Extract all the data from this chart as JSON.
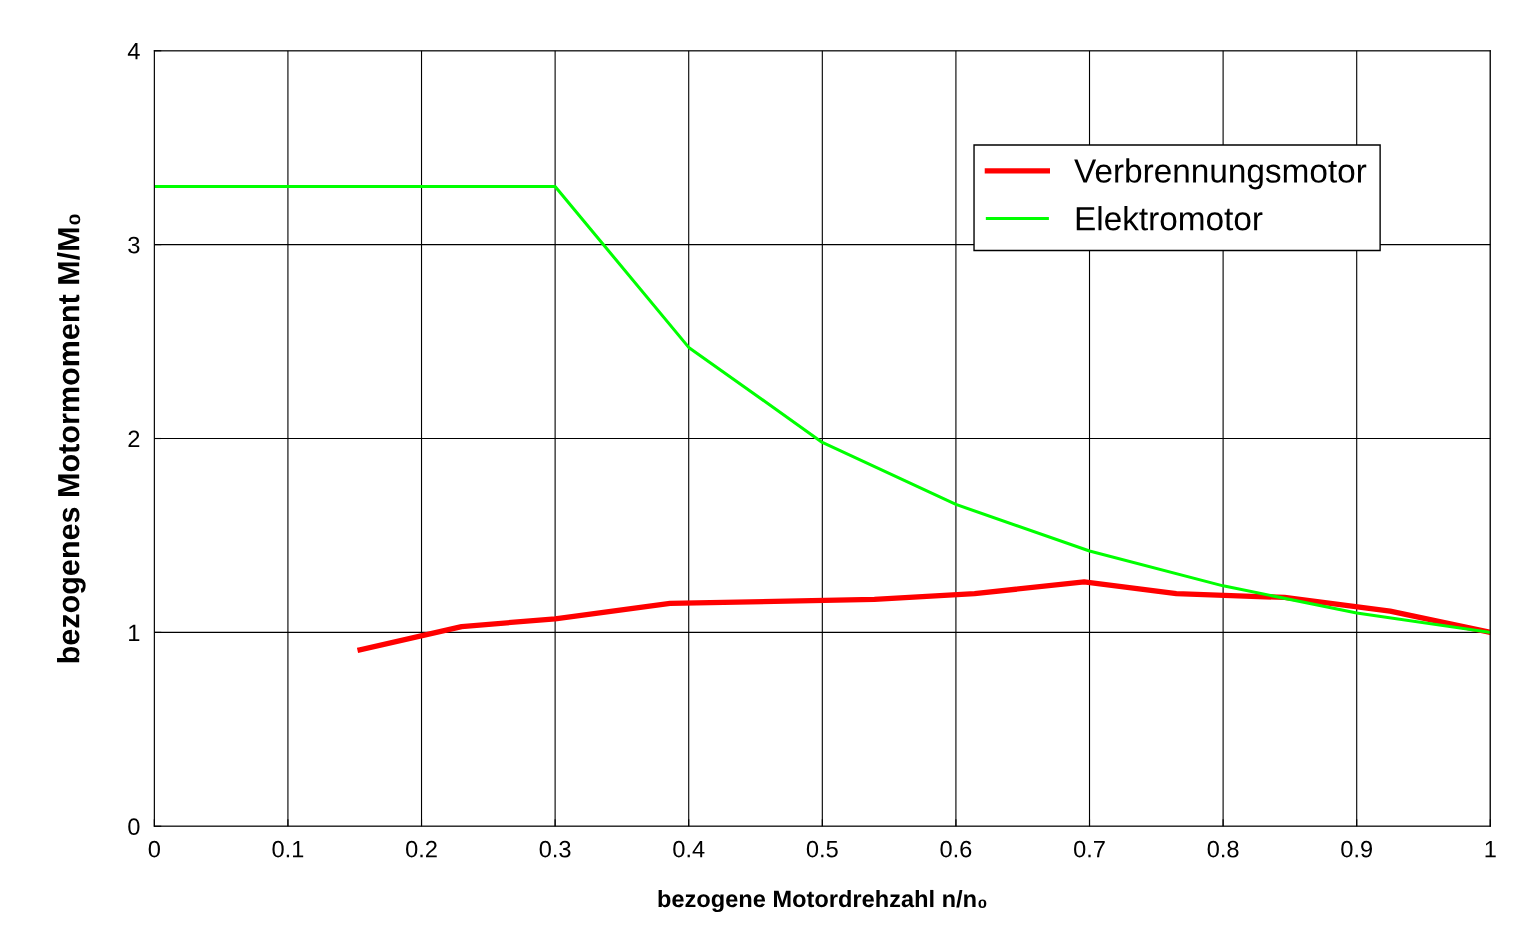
{
  "chart_data": {
    "type": "line",
    "xlabel": "bezogene Motordrehzahl n/n₀",
    "ylabel": "bezogenes Motormoment M/M₀",
    "xlim": [
      0,
      1
    ],
    "ylim": [
      0,
      4
    ],
    "xticks": [
      0,
      0.1,
      0.2,
      0.3,
      0.4,
      0.5,
      0.6,
      0.7,
      0.8,
      0.9,
      1
    ],
    "yticks": [
      0,
      1,
      2,
      3,
      4
    ],
    "grid": true,
    "legend": "top right",
    "marker": "none",
    "line_style": "solid",
    "series": [
      {
        "name": "Verbrennungsmotor",
        "color": "#ff0000",
        "x": [
          0.154,
          0.23,
          0.3,
          0.386,
          0.539,
          0.614,
          0.696,
          0.765,
          0.846,
          0.925,
          1.0
        ],
        "values": [
          0.91,
          1.03,
          1.07,
          1.15,
          1.17,
          1.2,
          1.26,
          1.2,
          1.18,
          1.11,
          1.0
        ]
      },
      {
        "name": "Elektromotor",
        "color": "#00ff00",
        "x": [
          0,
          0.3,
          0.4,
          0.5,
          0.6,
          0.7,
          0.8,
          0.9,
          1.0
        ],
        "values": [
          3.3,
          3.3,
          2.47,
          1.98,
          1.66,
          1.42,
          1.24,
          1.1,
          1.0
        ]
      }
    ]
  }
}
